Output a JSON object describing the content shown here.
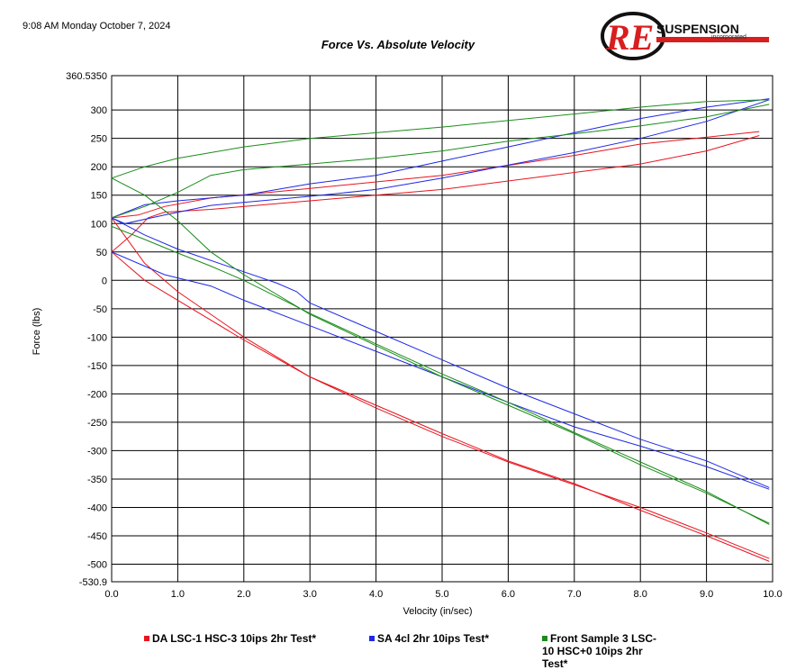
{
  "header": {
    "timestamp": "9:08 AM Monday October 7, 2024",
    "logo_letters": "RE",
    "logo_word": "SUSPENSION",
    "logo_sub": "incorporated"
  },
  "chart_data": {
    "type": "line",
    "title": "Force Vs. Absolute Velocity",
    "xlabel": "Velocity (in/sec)",
    "ylabel": "Force (lbs)",
    "xlim": [
      0,
      10
    ],
    "ylim": [
      -530.9,
      360.535
    ],
    "x_ticks": [
      "0.0",
      "1.0",
      "2.0",
      "3.0",
      "4.0",
      "5.0",
      "6.0",
      "7.0",
      "8.0",
      "9.0",
      "10.0"
    ],
    "y_ticks": [
      "360.5350",
      "300",
      "250",
      "200",
      "150",
      "100",
      "50",
      "0",
      "-50",
      "-100",
      "-150",
      "-200",
      "-250",
      "-300",
      "-350",
      "-400",
      "-450",
      "-500",
      "-530.9"
    ],
    "grid": true,
    "legend_position": "bottom",
    "series": [
      {
        "name": "DA LSC-1 HSC-3 10ips 2hr Test*",
        "color": "#e8141e",
        "paths": [
          [
            [
              0,
              50
            ],
            [
              0.3,
              80
            ],
            [
              0.55,
              110
            ],
            [
              0.8,
              120
            ],
            [
              1.5,
              125
            ],
            [
              3,
              140
            ],
            [
              5,
              160
            ],
            [
              7,
              190
            ],
            [
              8,
              205
            ],
            [
              9,
              228
            ],
            [
              9.8,
              255
            ]
          ],
          [
            [
              0,
              110
            ],
            [
              0.4,
              115
            ],
            [
              0.8,
              130
            ],
            [
              1.5,
              145
            ],
            [
              3,
              162
            ],
            [
              5,
              185
            ],
            [
              7,
              220
            ],
            [
              8,
              240
            ],
            [
              9,
              252
            ],
            [
              9.8,
              262
            ]
          ],
          [
            [
              0,
              110
            ],
            [
              0.5,
              30
            ],
            [
              1,
              -20
            ],
            [
              2,
              -100
            ],
            [
              3,
              -170
            ],
            [
              4,
              -225
            ],
            [
              5,
              -275
            ],
            [
              6,
              -320
            ],
            [
              7,
              -360
            ],
            [
              8,
              -400
            ],
            [
              9,
              -445
            ],
            [
              9.95,
              -490
            ]
          ],
          [
            [
              0,
              50
            ],
            [
              0.5,
              0
            ],
            [
              1,
              -35
            ],
            [
              2,
              -105
            ],
            [
              3,
              -170
            ],
            [
              4,
              -220
            ],
            [
              5,
              -270
            ],
            [
              6,
              -318
            ],
            [
              7,
              -358
            ],
            [
              8,
              -405
            ],
            [
              9,
              -450
            ],
            [
              9.95,
              -495
            ]
          ]
        ]
      },
      {
        "name": "SA 4cl 2hr 10ips Test*",
        "color": "#1e28e6",
        "paths": [
          [
            [
              0,
              110
            ],
            [
              0.2,
              100
            ],
            [
              0.8,
              115
            ],
            [
              1.5,
              132
            ],
            [
              3,
              148
            ],
            [
              4,
              160
            ],
            [
              5,
              180
            ],
            [
              6,
              203
            ],
            [
              7,
              225
            ],
            [
              8,
              250
            ],
            [
              9,
              280
            ],
            [
              9.95,
              318
            ]
          ],
          [
            [
              0,
              110
            ],
            [
              0.5,
              133
            ],
            [
              1,
              140
            ],
            [
              2,
              150
            ],
            [
              3,
              170
            ],
            [
              4,
              185
            ],
            [
              5,
              210
            ],
            [
              6,
              235
            ],
            [
              7,
              260
            ],
            [
              8,
              285
            ],
            [
              9,
              305
            ],
            [
              9.95,
              320
            ]
          ],
          [
            [
              0,
              110
            ],
            [
              0.5,
              80
            ],
            [
              1,
              55
            ],
            [
              2,
              15
            ],
            [
              2.5,
              -5
            ],
            [
              2.8,
              -20
            ],
            [
              3,
              -40
            ],
            [
              4,
              -90
            ],
            [
              5,
              -140
            ],
            [
              6,
              -190
            ],
            [
              7,
              -235
            ],
            [
              8,
              -280
            ],
            [
              9,
              -318
            ],
            [
              9.95,
              -365
            ]
          ],
          [
            [
              0,
              50
            ],
            [
              0.8,
              10
            ],
            [
              1.5,
              -10
            ],
            [
              2,
              -35
            ],
            [
              3,
              -80
            ],
            [
              4,
              -125
            ],
            [
              5,
              -170
            ],
            [
              6,
              -215
            ],
            [
              7,
              -258
            ],
            [
              8,
              -292
            ],
            [
              9,
              -328
            ],
            [
              9.95,
              -368
            ]
          ]
        ]
      },
      {
        "name": "Front Sample 3 LSC-10 HSC+0 10ips 2hr Test*",
        "color": "#1a8c1a",
        "paths": [
          [
            [
              0,
              180
            ],
            [
              0.5,
              200
            ],
            [
              1,
              215
            ],
            [
              2,
              235
            ],
            [
              3,
              250
            ],
            [
              5,
              270
            ],
            [
              7,
              293
            ],
            [
              8,
              305
            ],
            [
              9,
              315
            ],
            [
              9.95,
              318
            ]
          ],
          [
            [
              0,
              110
            ],
            [
              0.5,
              130
            ],
            [
              1,
              155
            ],
            [
              1.5,
              185
            ],
            [
              2,
              195
            ],
            [
              3,
              205
            ],
            [
              4,
              215
            ],
            [
              5,
              228
            ],
            [
              6,
              245
            ],
            [
              7,
              258
            ],
            [
              8,
              272
            ],
            [
              9,
              288
            ],
            [
              9.95,
              310
            ]
          ],
          [
            [
              0,
              180
            ],
            [
              0.5,
              150
            ],
            [
              1,
              105
            ],
            [
              1.5,
              50
            ],
            [
              2,
              10
            ],
            [
              3,
              -60
            ],
            [
              4,
              -115
            ],
            [
              5,
              -170
            ],
            [
              6,
              -220
            ],
            [
              7,
              -270
            ],
            [
              8,
              -325
            ],
            [
              9,
              -375
            ],
            [
              9.95,
              -428
            ]
          ],
          [
            [
              0,
              95
            ],
            [
              0.5,
              72
            ],
            [
              1,
              48
            ],
            [
              1.5,
              25
            ],
            [
              2,
              0
            ],
            [
              3,
              -58
            ],
            [
              4,
              -112
            ],
            [
              5,
              -165
            ],
            [
              6,
              -215
            ],
            [
              7,
              -268
            ],
            [
              8,
              -320
            ],
            [
              9,
              -372
            ],
            [
              9.95,
              -430
            ]
          ]
        ]
      }
    ]
  }
}
